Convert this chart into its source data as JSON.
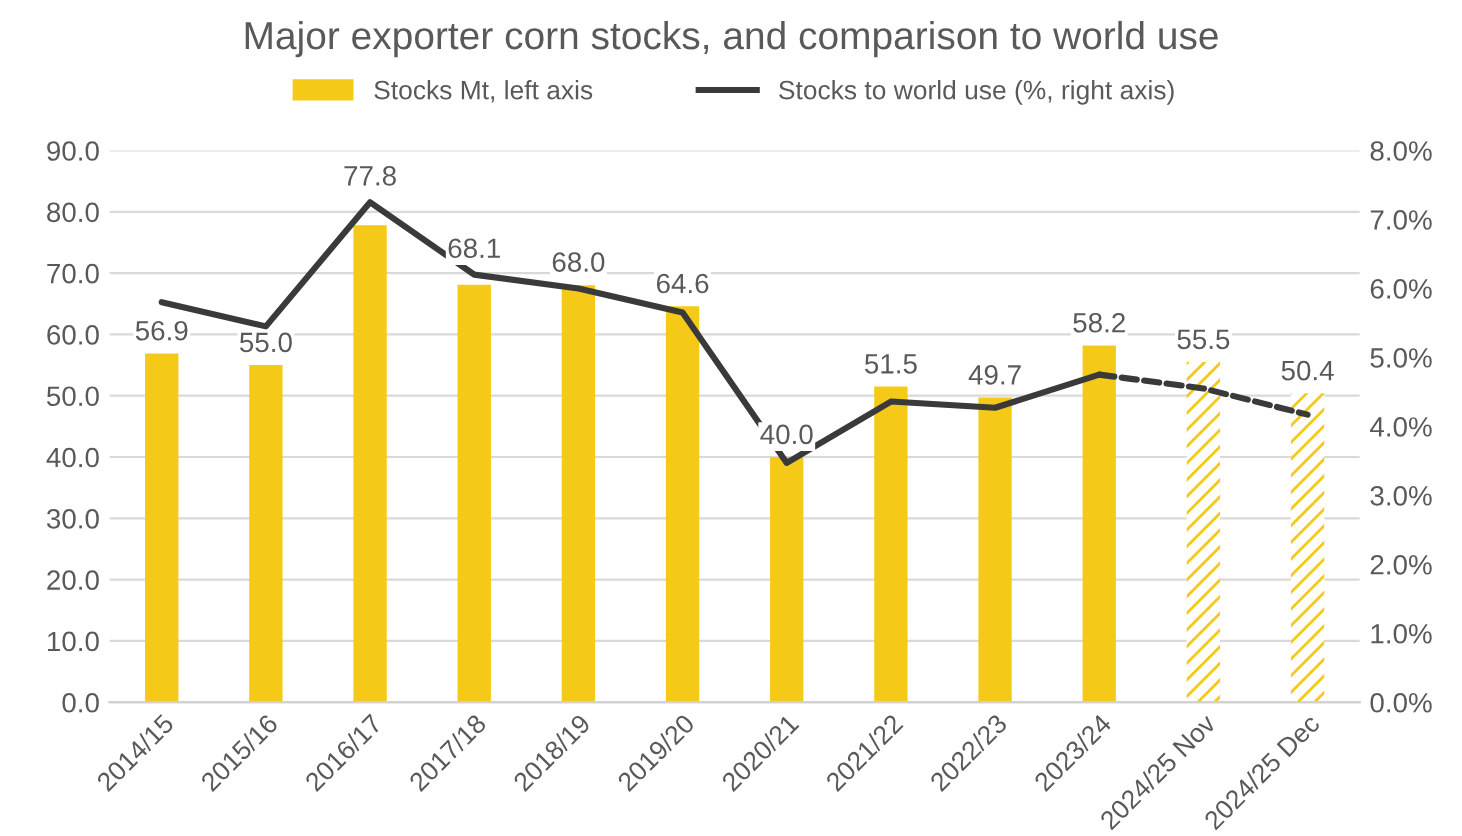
{
  "chart_data": {
    "type": "bar",
    "title": "Major exporter corn stocks, and comparison to world use",
    "categories": [
      "2014/15",
      "2015/16",
      "2016/17",
      "2017/18",
      "2018/19",
      "2019/20",
      "2020/21",
      "2021/22",
      "2022/23",
      "2023/24",
      "2024/25 Nov",
      "2024/25 Dec"
    ],
    "stacked": true,
    "series": [
      {
        "name": "Stocks Mt, left axis",
        "color": "#f5c918",
        "values": [
          56.9,
          55.0,
          77.8,
          68.1,
          68.0,
          64.6,
          40.0,
          51.5,
          49.7,
          58.2,
          null,
          null
        ],
        "value_labels": [
          "56.9",
          "55.0",
          "77.8",
          "68.1",
          "68.0",
          "64.6",
          "40.0",
          "51.5",
          "49.7",
          "58.2",
          null,
          null
        ]
      },
      {
        "color": "#f5c918",
        "values": [
          null,
          null,
          null,
          null,
          null,
          null,
          null,
          null,
          null,
          null,
          55.5,
          50.4
        ],
        "value_labels": [
          null,
          null,
          null,
          null,
          null,
          null,
          null,
          null,
          null,
          null,
          "55.5",
          "50.4"
        ]
      },
      {
        "name": "Stocks to world use (%, right axis)",
        "type": "line",
        "axis": "y2",
        "color": "#3a3a3a",
        "line_style": "solid",
        "values": [
          5.8,
          5.45,
          7.25,
          6.2,
          6.0,
          5.65,
          3.47,
          4.36,
          4.27,
          4.75,
          null,
          null
        ]
      },
      {
        "type": "line",
        "axis": "y2",
        "color": "#3a3a3a",
        "line_style": "dashed",
        "values": [
          null,
          null,
          null,
          null,
          null,
          null,
          null,
          null,
          null,
          4.75,
          4.55,
          4.17
        ]
      }
    ],
    "ylim": [
      0,
      90
    ],
    "yticks": [
      {
        "value": 0,
        "label": "0.0"
      },
      {
        "value": 10,
        "label": "10.0"
      },
      {
        "value": 20,
        "label": "20.0"
      },
      {
        "value": 30,
        "label": "30.0"
      },
      {
        "value": 40,
        "label": "40.0"
      },
      {
        "value": 50,
        "label": "50.0"
      },
      {
        "value": 60,
        "label": "60.0"
      },
      {
        "value": 70,
        "label": "70.0"
      },
      {
        "value": 80,
        "label": "80.0"
      },
      {
        "value": 90,
        "label": "90.0"
      }
    ],
    "y2lim": [
      0,
      8
    ],
    "y2ticks": [
      {
        "value": 0,
        "label": "0.0%"
      },
      {
        "value": 1,
        "label": "1.0%"
      },
      {
        "value": 2,
        "label": "2.0%"
      },
      {
        "value": 3,
        "label": "3.0%"
      },
      {
        "value": 4,
        "label": "4.0%"
      },
      {
        "value": 5,
        "label": "5.0%"
      },
      {
        "value": 6,
        "label": "6.0%"
      },
      {
        "value": 7,
        "label": "7.0%"
      },
      {
        "value": 8,
        "label": "8.0%"
      }
    ],
    "grid": "y",
    "legend": "top",
    "marker": "none"
  }
}
